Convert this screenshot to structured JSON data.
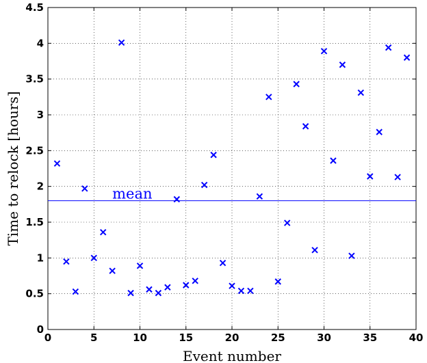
{
  "chart_data": {
    "type": "scatter",
    "title": "",
    "xlabel": "Event number",
    "ylabel": "Time to relock [hours]",
    "xlim": [
      0,
      40
    ],
    "ylim": [
      0,
      4.5
    ],
    "xticks": [
      "0",
      "5",
      "10",
      "15",
      "20",
      "25",
      "30",
      "35",
      "40"
    ],
    "yticks": [
      "0",
      "0.5",
      "1",
      "1.5",
      "2",
      "2.5",
      "3",
      "3.5",
      "4",
      "4.5"
    ],
    "grid": true,
    "marker": "x",
    "marker_color": "#0000ff",
    "series": [
      {
        "x": [
          1,
          2,
          3,
          4,
          5,
          6,
          7,
          8,
          9,
          10,
          11,
          12,
          13,
          14,
          15,
          16,
          17,
          18,
          19,
          20,
          21,
          22,
          23,
          24,
          25,
          26,
          27,
          28,
          29,
          30,
          31,
          32,
          33,
          34,
          35,
          36,
          37,
          38,
          39
        ],
        "y": [
          2.32,
          0.95,
          0.53,
          1.97,
          1.0,
          1.36,
          0.82,
          4.01,
          0.51,
          0.89,
          0.56,
          0.51,
          0.59,
          1.82,
          0.62,
          0.68,
          2.02,
          2.44,
          0.93,
          0.61,
          0.54,
          0.54,
          1.86,
          3.25,
          0.67,
          1.49,
          3.43,
          2.84,
          1.11,
          3.89,
          2.36,
          3.7,
          1.03,
          3.31,
          2.14,
          2.76,
          3.94,
          2.13,
          3.8
        ]
      }
    ],
    "reference_line": {
      "label": "mean",
      "y": 1.8,
      "color": "#0000ff"
    }
  }
}
